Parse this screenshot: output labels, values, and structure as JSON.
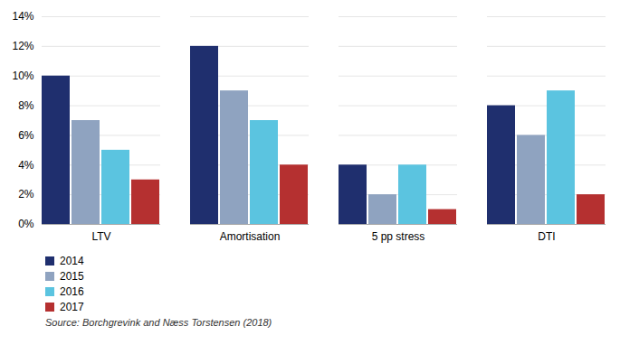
{
  "chart_data": {
    "type": "bar",
    "categories": [
      "LTV",
      "Amortisation",
      "5 pp stress",
      "DTI"
    ],
    "series": [
      {
        "name": "2014",
        "color": "#1f2f6e",
        "values": [
          10,
          12,
          4,
          8
        ]
      },
      {
        "name": "2015",
        "color": "#8fa3c0",
        "values": [
          7,
          9,
          2,
          6
        ]
      },
      {
        "name": "2016",
        "color": "#5bc4e0",
        "values": [
          5,
          7,
          4,
          9
        ]
      },
      {
        "name": "2017",
        "color": "#b53030",
        "values": [
          3,
          4,
          1,
          2
        ]
      }
    ],
    "ylim": [
      0,
      14
    ],
    "yticks": [
      {
        "value": 0,
        "label": "0%"
      },
      {
        "value": 2,
        "label": "2%"
      },
      {
        "value": 4,
        "label": "4%"
      },
      {
        "value": 6,
        "label": "6%"
      },
      {
        "value": 8,
        "label": "8%"
      },
      {
        "value": 10,
        "label": "10%"
      },
      {
        "value": 12,
        "label": "12%"
      },
      {
        "value": 14,
        "label": "14%"
      }
    ],
    "grid": true,
    "legend": "lower left",
    "annotations": [
      "Source: Borchgrevink and Næss Torstensen (2018)"
    ]
  }
}
